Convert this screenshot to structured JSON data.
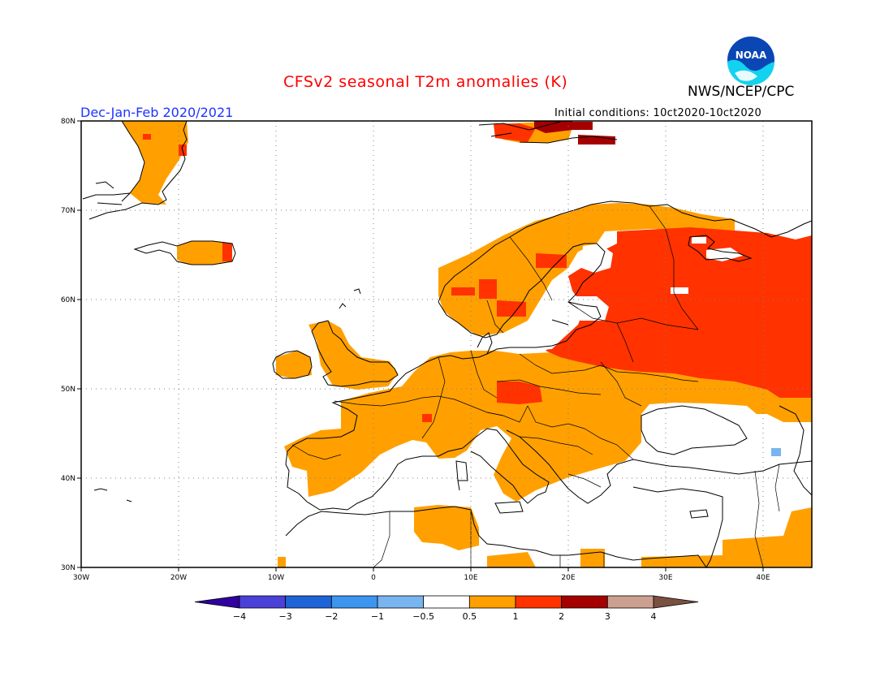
{
  "header": {
    "title": "CFSv2 seasonal T2m anomalies (K)",
    "period": "Dec-Jan-Feb 2020/2021",
    "initial_conditions": "Initial conditions: 10ct2020-10ct2020",
    "organization": "NWS/NCEP/CPC",
    "logo_text": "NOAA"
  },
  "map": {
    "region": "Europe",
    "lon_range": [
      -30,
      45
    ],
    "lat_range": [
      30,
      80
    ],
    "lat_labels": [
      "80N",
      "70N",
      "60N",
      "50N",
      "40N",
      "30N"
    ],
    "lon_labels": [
      "30W",
      "20W",
      "10W",
      "0",
      "10E",
      "20E",
      "30E",
      "40E"
    ],
    "gridlines": "dotted"
  },
  "colorbar": {
    "ticks": [
      "-4",
      "-3",
      "-2",
      "-1",
      "-0.5",
      "0.5",
      "1",
      "2",
      "3",
      "4"
    ],
    "colors": [
      "#3000a0",
      "#4b40d8",
      "#1e64d8",
      "#3c96f0",
      "#78b4f0",
      "#ffffff",
      "#ffa000",
      "#ff3200",
      "#a50000",
      "#cca090",
      "#7a5040"
    ]
  },
  "anomaly_colors": {
    "0.5-1": "#ffa000",
    "1-2": "#ff3200",
    "2-3": "#a50000",
    "neg": "#78b4f0"
  }
}
